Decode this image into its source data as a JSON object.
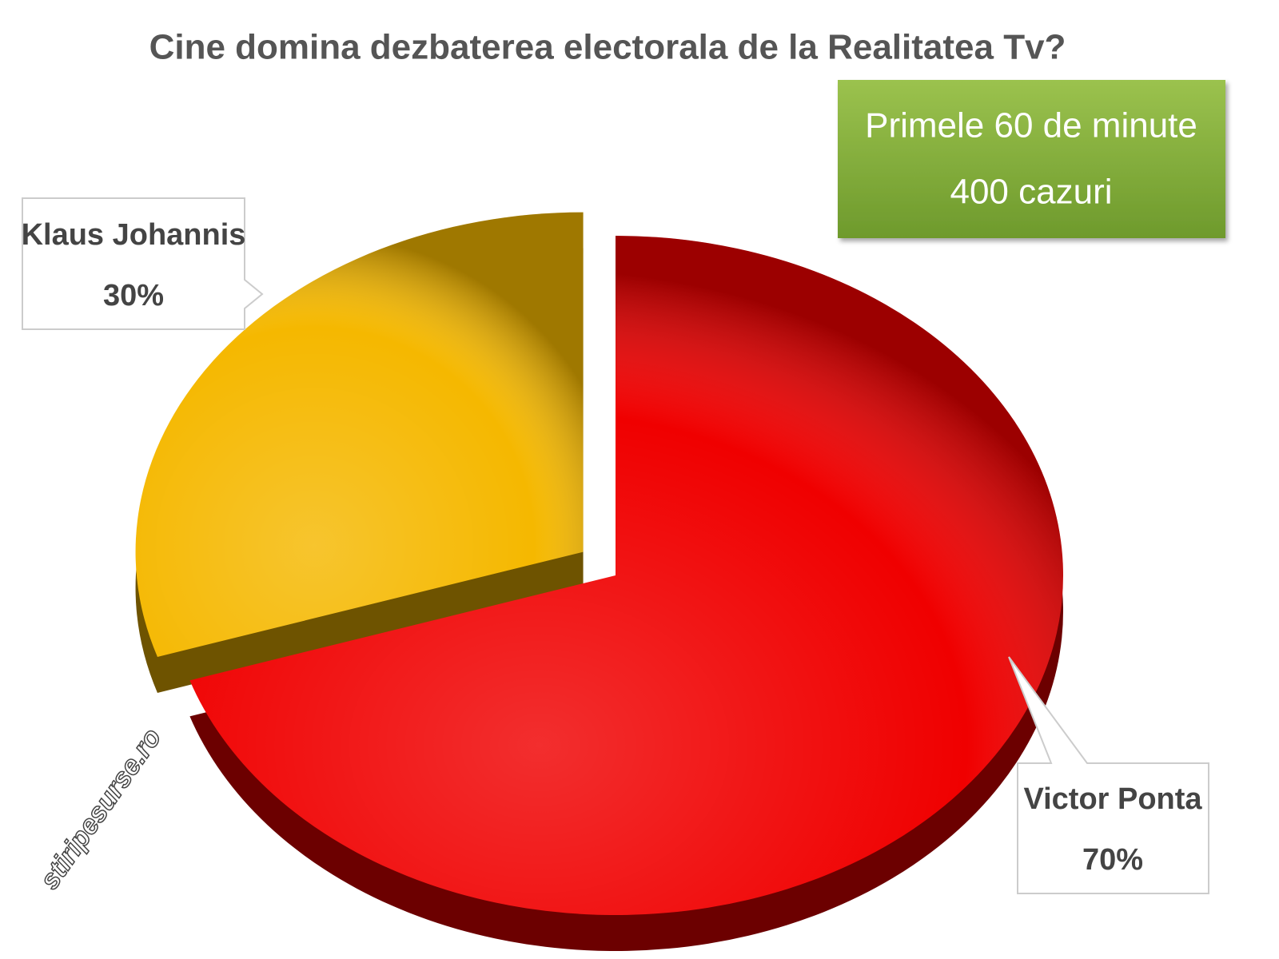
{
  "chart_data": {
    "type": "pie",
    "title": "Cine domina dezbaterea electorala de la Realitatea Tv?",
    "annotations": [
      "Primele 60 de minute",
      "400 cazuri"
    ],
    "watermark": "stiripesurse.ro",
    "categories": [
      "Klaus Johannis",
      "Victor Ponta"
    ],
    "values": [
      30,
      70
    ],
    "value_labels": [
      "30%",
      "70%"
    ],
    "colors": [
      "#f5b800",
      "#f00000"
    ]
  }
}
